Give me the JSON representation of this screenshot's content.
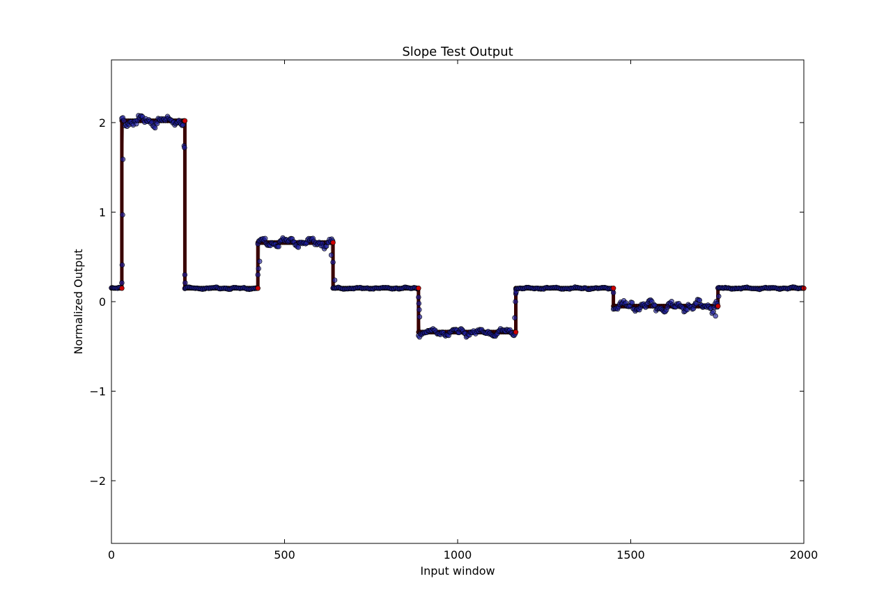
{
  "chart_data": {
    "type": "scatter",
    "title": "Slope Test Output",
    "xlabel": "Input window",
    "ylabel": "Normalized Output",
    "xlim": [
      0,
      2000
    ],
    "ylim": [
      -2.7,
      2.7
    ],
    "xticks": [
      0,
      500,
      1000,
      1500,
      2000
    ],
    "xtick_labels": [
      "0",
      "500",
      "1000",
      "1500",
      "2000"
    ],
    "yticks": [
      -2,
      -1,
      0,
      1,
      2
    ],
    "ytick_labels": [
      "−2",
      "−1",
      "0",
      "1",
      "2"
    ],
    "grid": false,
    "legend": "none",
    "colors": {
      "observed": "#1f1fa0",
      "estimate": "#3a0000",
      "breakpoint": "#cc0000",
      "connector": "#888888"
    },
    "segments": [
      {
        "x_start": 0,
        "x_end": 30,
        "level": 0.15,
        "noise": 0.01
      },
      {
        "x_start": 30,
        "x_end": 212,
        "level": 2.02,
        "noise": 0.06
      },
      {
        "x_start": 212,
        "x_end": 423,
        "level": 0.15,
        "noise": 0.01
      },
      {
        "x_start": 423,
        "x_end": 640,
        "level": 0.66,
        "noise": 0.05
      },
      {
        "x_start": 640,
        "x_end": 887,
        "level": 0.15,
        "noise": 0.01
      },
      {
        "x_start": 887,
        "x_end": 1168,
        "level": -0.34,
        "noise": 0.04
      },
      {
        "x_start": 1168,
        "x_end": 1450,
        "level": 0.15,
        "noise": 0.01
      },
      {
        "x_start": 1450,
        "x_end": 1752,
        "level": -0.05,
        "noise": 0.06
      },
      {
        "x_start": 1752,
        "x_end": 2000,
        "level": 0.15,
        "noise": 0.01
      }
    ],
    "transition_points": [
      {
        "x": 30,
        "y": 0.21
      },
      {
        "x": 31,
        "y": 0.41
      },
      {
        "x": 32,
        "y": 0.97
      },
      {
        "x": 33,
        "y": 1.59
      },
      {
        "x": 210,
        "y": 1.74
      },
      {
        "x": 211,
        "y": 1.72
      },
      {
        "x": 212,
        "y": 0.3
      },
      {
        "x": 213,
        "y": 0.21
      },
      {
        "x": 423,
        "y": 0.3
      },
      {
        "x": 425,
        "y": 0.37
      },
      {
        "x": 428,
        "y": 0.45
      },
      {
        "x": 635,
        "y": 0.52
      },
      {
        "x": 640,
        "y": 0.44
      },
      {
        "x": 645,
        "y": 0.24
      },
      {
        "x": 887,
        "y": 0.05
      },
      {
        "x": 888,
        "y": -0.02
      },
      {
        "x": 889,
        "y": -0.09
      },
      {
        "x": 890,
        "y": -0.17
      },
      {
        "x": 1165,
        "y": -0.18
      },
      {
        "x": 1167,
        "y": 0.0
      },
      {
        "x": 1168,
        "y": 0.09
      },
      {
        "x": 1169,
        "y": 0.11
      },
      {
        "x": 1450,
        "y": 0.1
      },
      {
        "x": 1745,
        "y": -0.16
      },
      {
        "x": 1750,
        "y": -0.06
      },
      {
        "x": 1754,
        "y": 0.06
      }
    ],
    "point_step": 3
  }
}
